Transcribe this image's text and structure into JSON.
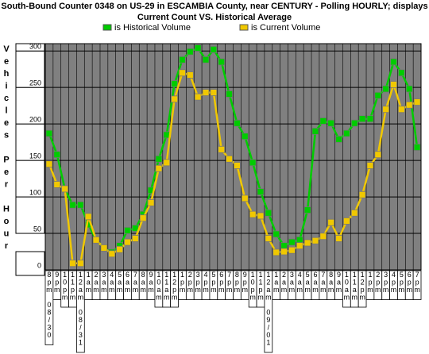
{
  "chart_data": {
    "type": "line",
    "title": "South-Bound Counter 0348 on US-29 in ESCAMBIA County, near CENTURY - Polling HOURLY; displays",
    "subtitle": "Current Count VS. Historical Average",
    "ylabel": "Vehicles Per Hour",
    "categories": [
      "8pm 08/30",
      "9pm",
      "10pm",
      "11pm",
      "12am 08/31",
      "1am",
      "2am",
      "3am",
      "4am",
      "5am",
      "6am",
      "7am",
      "8am",
      "9am",
      "10am",
      "11am",
      "12pm",
      "1pm",
      "2pm",
      "3pm",
      "4pm",
      "5pm",
      "6pm",
      "7pm",
      "8pm",
      "9pm",
      "10pm",
      "11pm",
      "12am 09/01",
      "1am",
      "2am",
      "3am",
      "4am",
      "5am",
      "6am",
      "7am",
      "8am",
      "9am",
      "10am",
      "11am",
      "12pm",
      "1pm",
      "2pm",
      "3pm",
      "4pm",
      "5pm",
      "6pm",
      "7pm"
    ],
    "series": [
      {
        "name": "is Historical Volume",
        "color": "#00cc00",
        "values": [
          187,
          158,
          111,
          89,
          89,
          62,
          41,
          30,
          24,
          33,
          54,
          57,
          76,
          109,
          152,
          185,
          255,
          288,
          299,
          304,
          288,
          302,
          285,
          241,
          201,
          183,
          147,
          107,
          78,
          49,
          33,
          38,
          41,
          82,
          190,
          204,
          201,
          179,
          187,
          201,
          207,
          207,
          239,
          248,
          285,
          270,
          248,
          168
        ]
      },
      {
        "name": "is Current Volume",
        "color": "#f0c800",
        "values": [
          145,
          117,
          111,
          9,
          9,
          73,
          41,
          30,
          22,
          28,
          38,
          43,
          71,
          92,
          139,
          147,
          234,
          270,
          267,
          237,
          243,
          243,
          165,
          152,
          143,
          98,
          76,
          74,
          43,
          24,
          25,
          27,
          33,
          37,
          40,
          46,
          65,
          43,
          67,
          78,
          103,
          143,
          158,
          220,
          254,
          220,
          226,
          230
        ]
      }
    ],
    "ylim": [
      0,
      310
    ],
    "yticks": [
      0,
      50,
      100,
      150,
      200,
      250,
      300
    ],
    "grid": true
  }
}
